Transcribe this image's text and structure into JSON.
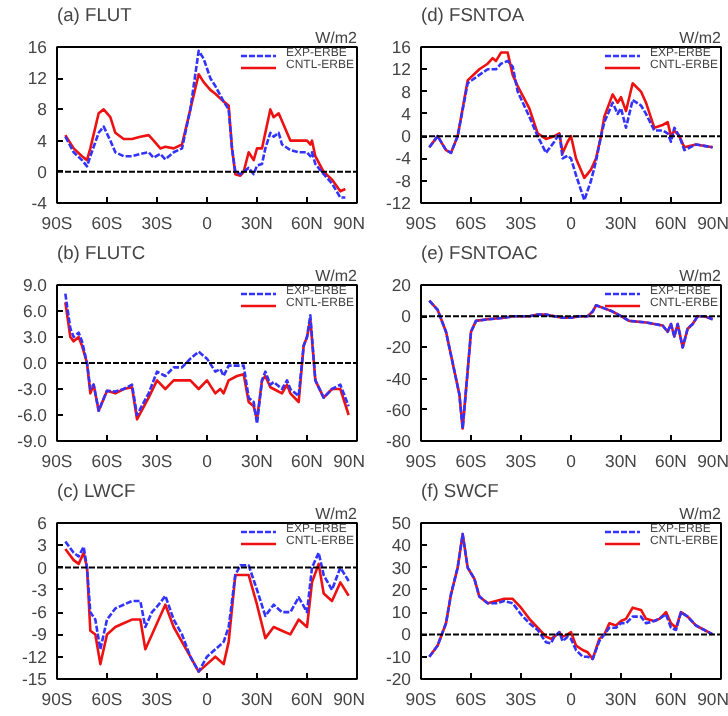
{
  "chart_data": [
    {
      "type": "line",
      "title": "(a) FLUT",
      "annotations": [
        "W/m2"
      ],
      "legend": "top right",
      "grid": false,
      "x": [
        -85,
        -80,
        -75,
        -72,
        -70,
        -65,
        -62,
        -58,
        -55,
        -50,
        -45,
        -40,
        -35,
        -32,
        -28,
        -25,
        -20,
        -15,
        -10,
        -5,
        -2,
        2,
        5,
        10,
        13,
        15,
        17,
        20,
        22,
        25,
        28,
        30,
        33,
        35,
        38,
        40,
        43,
        45,
        50,
        55,
        60,
        62,
        63,
        65,
        70,
        75,
        80,
        83
      ],
      "series": [
        {
          "name": "EXP-ERBE",
          "color": "#3333ff",
          "line_style": "dashed",
          "values": [
            4.5,
            2.5,
            1.5,
            0.7,
            2,
            5,
            5.8,
            4,
            2.5,
            2,
            2,
            2.3,
            2.5,
            1.8,
            2.3,
            1.6,
            2.5,
            3,
            8,
            15.5,
            14.5,
            12,
            11,
            9,
            8,
            3,
            0,
            -0.3,
            0,
            0.5,
            -0.3,
            0.8,
            1,
            3,
            5,
            4.5,
            5,
            3.5,
            2.8,
            2.5,
            2.5,
            2,
            2.5,
            1,
            -0.3,
            -1.5,
            -3.3,
            -3.3
          ]
        },
        {
          "name": "CNTL-ERBE",
          "color": "#ee1111",
          "line_style": "solid",
          "values": [
            4.7,
            3,
            2,
            1.5,
            3,
            7.5,
            8,
            7,
            5,
            4.2,
            4.2,
            4.5,
            4.7,
            4,
            3,
            3.2,
            3,
            3.5,
            8,
            12.5,
            11.5,
            10.5,
            10,
            9,
            8.5,
            3,
            -0.3,
            -0.5,
            0,
            2.5,
            1.5,
            3,
            3,
            5,
            8,
            7,
            7.5,
            6.5,
            4,
            4,
            4,
            3.5,
            4,
            2,
            0,
            -1,
            -2.5,
            -2.2
          ]
        }
      ],
      "xlim": [
        -90,
        90
      ],
      "xticks": [
        {
          "value": -90,
          "label": "90S"
        },
        {
          "value": -60,
          "label": "60S"
        },
        {
          "value": -30,
          "label": "30S"
        },
        0,
        {
          "value": 30,
          "label": "30N"
        },
        {
          "value": 60,
          "label": "60N"
        },
        {
          "value": 90,
          "label": "90N"
        }
      ],
      "ylim": [
        -4,
        16
      ],
      "yticks": [
        -4,
        0,
        4,
        8,
        12,
        16
      ],
      "ref_lines": [
        {
          "axis": "y",
          "value": 0,
          "color": "#000000",
          "line_style": "dashed"
        }
      ]
    },
    {
      "type": "line",
      "title": "(b) FLUTC",
      "annotations": [
        "W/m2"
      ],
      "legend": "top right",
      "grid": false,
      "x": [
        -85,
        -82,
        -80,
        -77,
        -75,
        -72,
        -70,
        -68,
        -65,
        -60,
        -55,
        -50,
        -45,
        -42,
        -35,
        -30,
        -25,
        -20,
        -15,
        -10,
        -5,
        0,
        5,
        8,
        10,
        13,
        18,
        22,
        25,
        28,
        30,
        33,
        35,
        38,
        40,
        45,
        48,
        50,
        55,
        58,
        60,
        62,
        65,
        70,
        75,
        80,
        85
      ],
      "series": [
        {
          "name": "EXP-ERBE",
          "color": "#3333ff",
          "line_style": "dashed",
          "values": [
            8,
            4,
            3,
            3.5,
            2.5,
            0,
            -3,
            -2.5,
            -5.5,
            -3.2,
            -3.3,
            -3,
            -2.5,
            -6,
            -3.5,
            -1,
            -1.5,
            -0.5,
            -0.5,
            0.5,
            1.3,
            0.5,
            -1,
            -0.7,
            -1.5,
            -0.3,
            -0.3,
            -0.3,
            -4,
            -4.5,
            -7,
            -2,
            -1,
            -2.5,
            -2.2,
            -3,
            -2,
            -3,
            -3.8,
            2,
            3,
            5.5,
            -2,
            -4,
            -3,
            -2.5,
            -5
          ]
        },
        {
          "name": "CNTL-ERBE",
          "color": "#ee1111",
          "line_style": "solid",
          "values": [
            7,
            3,
            2.5,
            3,
            2,
            0,
            -3.5,
            -2.5,
            -5.5,
            -3.2,
            -3.5,
            -3,
            -2.8,
            -6.5,
            -4,
            -2,
            -3,
            -2,
            -2,
            -2,
            -3,
            -2,
            -3.5,
            -3,
            -3.5,
            -2,
            -1.5,
            -1.3,
            -4.5,
            -5,
            -6.5,
            -2,
            -1.5,
            -2.8,
            -3,
            -3.5,
            -2.5,
            -3.5,
            -4.5,
            2,
            3,
            5,
            -2,
            -4,
            -3,
            -3,
            -6
          ]
        }
      ],
      "xlim": [
        -90,
        90
      ],
      "xticks": [
        {
          "value": -90,
          "label": "90S"
        },
        {
          "value": -60,
          "label": "60S"
        },
        {
          "value": -30,
          "label": "30S"
        },
        0,
        {
          "value": 30,
          "label": "30N"
        },
        {
          "value": 60,
          "label": "60N"
        },
        {
          "value": 90,
          "label": "90N"
        }
      ],
      "ylim": [
        -9,
        9
      ],
      "yticks": [
        {
          "value": -9,
          "label": "-9.0"
        },
        {
          "value": -6,
          "label": "-6.0"
        },
        {
          "value": -3,
          "label": "-3.0"
        },
        {
          "value": 0,
          "label": "0.0"
        },
        {
          "value": 3,
          "label": "3.0"
        },
        {
          "value": 6,
          "label": "6.0"
        },
        {
          "value": 9,
          "label": "9.0"
        }
      ],
      "ref_lines": [
        {
          "axis": "y",
          "value": 0,
          "color": "#000000",
          "line_style": "dashed"
        }
      ]
    },
    {
      "type": "line",
      "title": "(c) LWCF",
      "annotations": [
        "W/m2"
      ],
      "legend": "top right",
      "grid": false,
      "x": [
        -85,
        -80,
        -77,
        -74,
        -72,
        -70,
        -67,
        -64,
        -60,
        -55,
        -50,
        -45,
        -40,
        -37,
        -33,
        -29,
        -25,
        -20,
        -15,
        -10,
        -5,
        0,
        5,
        10,
        13,
        17,
        20,
        25,
        30,
        35,
        40,
        45,
        50,
        55,
        60,
        63,
        67,
        70,
        75,
        80,
        85
      ],
      "series": [
        {
          "name": "EXP-ERBE",
          "color": "#3333ff",
          "line_style": "dashed",
          "values": [
            3.5,
            2,
            1.5,
            2.8,
            0,
            -6,
            -7,
            -11,
            -7,
            -5.5,
            -5,
            -4.5,
            -4.5,
            -8,
            -6,
            -5,
            -3.8,
            -7,
            -9,
            -12,
            -14,
            -12,
            -11,
            -10,
            -8,
            -1,
            0.3,
            0.3,
            -3,
            -6.5,
            -5,
            -6,
            -6,
            -4,
            -6,
            0,
            2,
            -1,
            -3,
            0,
            -1.8
          ]
        },
        {
          "name": "CNTL-ERBE",
          "color": "#ee1111",
          "line_style": "solid",
          "values": [
            2.5,
            1,
            0.5,
            2,
            0,
            -8.5,
            -9,
            -13,
            -9,
            -8,
            -7.5,
            -7,
            -7,
            -11,
            -9,
            -7,
            -5,
            -8,
            -10,
            -12,
            -14,
            -13,
            -12,
            -13,
            -10,
            -1,
            -1,
            -1,
            -5,
            -9.5,
            -8,
            -8.5,
            -9,
            -7,
            -8,
            -2,
            0.5,
            -3.5,
            -4.5,
            -2,
            -3.8
          ]
        }
      ],
      "xlim": [
        -90,
        90
      ],
      "xticks": [
        {
          "value": -90,
          "label": "90S"
        },
        {
          "value": -60,
          "label": "60S"
        },
        {
          "value": -30,
          "label": "30S"
        },
        0,
        {
          "value": 30,
          "label": "30N"
        },
        {
          "value": 60,
          "label": "60N"
        },
        {
          "value": 90,
          "label": "90N"
        }
      ],
      "ylim": [
        -15,
        6
      ],
      "yticks": [
        -15,
        -12,
        -9,
        -6,
        -3,
        0,
        3,
        6
      ],
      "ref_lines": [
        {
          "axis": "y",
          "value": 0,
          "color": "#000000",
          "line_style": "dashed"
        }
      ]
    },
    {
      "type": "line",
      "title": "(d) FSNTOA",
      "annotations": [
        "W/m2"
      ],
      "legend": "top right",
      "grid": false,
      "x": [
        -85,
        -80,
        -75,
        -72,
        -68,
        -62,
        -55,
        -50,
        -47,
        -45,
        -42,
        -38,
        -35,
        -32,
        -25,
        -20,
        -15,
        -10,
        -7,
        -5,
        -2,
        0,
        3,
        8,
        12,
        15,
        18,
        20,
        25,
        28,
        30,
        33,
        37,
        42,
        45,
        50,
        55,
        58,
        60,
        62,
        65,
        68,
        75,
        85
      ],
      "series": [
        {
          "name": "EXP-ERBE",
          "color": "#3333ff",
          "line_style": "dashed",
          "values": [
            -2,
            0,
            -2.5,
            -3,
            0,
            9.5,
            11,
            12,
            12,
            12,
            13,
            13.5,
            12.5,
            8,
            3.5,
            0,
            -3,
            -1,
            0.5,
            -4,
            -3.5,
            -4,
            -7,
            -11.5,
            -8,
            -4.5,
            0,
            2.5,
            6,
            4,
            5,
            1.5,
            6.5,
            5.5,
            4,
            1,
            1,
            0.5,
            -1,
            1.5,
            0,
            -2.5,
            -1.5,
            -2
          ]
        },
        {
          "name": "CNTL-ERBE",
          "color": "#ee1111",
          "line_style": "solid",
          "values": [
            -2,
            0,
            -2.5,
            -3,
            0,
            10,
            12,
            13,
            14,
            13.5,
            15,
            15,
            11,
            9,
            5,
            0.5,
            -0.5,
            0,
            0.5,
            -3,
            -1,
            0,
            -4,
            -7.5,
            -6,
            -4,
            0,
            3.5,
            7.5,
            6,
            7,
            4.5,
            9.5,
            8,
            6,
            1.5,
            2,
            2.5,
            0,
            1,
            0,
            -2,
            -1.5,
            -2
          ]
        }
      ],
      "xlim": [
        -90,
        90
      ],
      "xticks": [
        {
          "value": -90,
          "label": "90S"
        },
        {
          "value": -60,
          "label": "60S"
        },
        {
          "value": -30,
          "label": "30S"
        },
        0,
        {
          "value": 30,
          "label": "30N"
        },
        {
          "value": 60,
          "label": "60N"
        },
        {
          "value": 90,
          "label": "90N"
        }
      ],
      "ylim": [
        -12,
        16
      ],
      "yticks": [
        -12,
        -8,
        -4,
        0,
        4,
        8,
        12,
        16
      ],
      "ref_lines": [
        {
          "axis": "y",
          "value": 0,
          "color": "#000000",
          "line_style": "dashed"
        }
      ]
    },
    {
      "type": "line",
      "title": "(e) FSNTOAC",
      "annotations": [
        "W/m2"
      ],
      "legend": "top right",
      "grid": false,
      "x": [
        -85,
        -80,
        -75,
        -70,
        -67,
        -65,
        -62,
        -60,
        -57,
        -50,
        -40,
        -35,
        -25,
        -20,
        -15,
        -10,
        -5,
        0,
        5,
        10,
        13,
        15,
        20,
        25,
        30,
        35,
        45,
        55,
        58,
        60,
        62,
        64,
        67,
        70,
        73,
        76,
        80,
        85
      ],
      "series": [
        {
          "name": "CNTL-ERBE",
          "color": "#ee1111",
          "line_style": "solid",
          "values": [
            10,
            4,
            -10,
            -35,
            -50,
            -72,
            -35,
            -10,
            -3,
            -2,
            -1,
            0,
            0,
            1,
            1,
            0,
            -1,
            -1,
            0,
            0,
            3,
            7,
            5,
            3,
            0,
            -3,
            -4,
            -6,
            -10,
            -5,
            -13,
            -5,
            -20,
            -8,
            -5,
            0,
            0,
            -2
          ]
        },
        {
          "name": "EXP-ERBE",
          "color": "#3333ff",
          "line_style": "dashed",
          "values": [
            10,
            4,
            -10,
            -35,
            -50,
            -72,
            -35,
            -10,
            -3,
            -2,
            -1,
            0,
            0,
            1,
            1,
            0,
            -1,
            -1,
            0,
            0,
            3,
            7,
            5,
            3,
            0,
            -3,
            -4,
            -6,
            -10,
            -5,
            -13,
            -5,
            -20,
            -8,
            -5,
            0,
            0,
            -2
          ]
        }
      ],
      "xlim": [
        -90,
        90
      ],
      "xticks": [
        {
          "value": -90,
          "label": "90S"
        },
        {
          "value": -60,
          "label": "60S"
        },
        {
          "value": -30,
          "label": "30S"
        },
        0,
        {
          "value": 30,
          "label": "30N"
        },
        {
          "value": 60,
          "label": "60N"
        },
        {
          "value": 90,
          "label": "90N"
        }
      ],
      "ylim": [
        -80,
        20
      ],
      "yticks": [
        -80,
        -60,
        -40,
        -20,
        0,
        20
      ],
      "ref_lines": [
        {
          "axis": "y",
          "value": 0,
          "color": "#000000",
          "line_style": "dashed"
        }
      ]
    },
    {
      "type": "line",
      "title": "(f) SWCF",
      "annotations": [
        "W/m2"
      ],
      "legend": "top right",
      "grid": false,
      "x": [
        -85,
        -80,
        -75,
        -72,
        -68,
        -65,
        -62,
        -58,
        -55,
        -50,
        -45,
        -40,
        -35,
        -30,
        -25,
        -20,
        -15,
        -12,
        -10,
        -7,
        -5,
        -2,
        0,
        3,
        7,
        10,
        13,
        17,
        20,
        23,
        27,
        30,
        33,
        37,
        42,
        45,
        50,
        53,
        57,
        60,
        63,
        66,
        70,
        75,
        85
      ],
      "series": [
        {
          "name": "EXP-ERBE",
          "color": "#3333ff",
          "line_style": "dashed",
          "values": [
            -10,
            -5,
            5,
            18,
            30,
            45,
            30,
            25,
            17,
            14,
            14,
            15,
            14,
            9,
            5,
            2,
            -3.5,
            -4,
            -1,
            1,
            -3,
            -1,
            -2,
            -7,
            -10,
            -10,
            -11,
            -3,
            0,
            3,
            3,
            5,
            5,
            8,
            8,
            5,
            6,
            7,
            9,
            3,
            2,
            10,
            8,
            4,
            0
          ]
        },
        {
          "name": "CNTL-ERBE",
          "color": "#ee1111",
          "line_style": "solid",
          "values": [
            -10,
            -5,
            5,
            18,
            30,
            45,
            30,
            25,
            17,
            14,
            15,
            16,
            16,
            12,
            7,
            3,
            -1,
            -2,
            -1,
            1,
            -1,
            0,
            1,
            -5,
            -7,
            -8,
            -11,
            -2,
            0,
            5,
            4,
            6,
            7,
            12,
            11,
            7,
            6,
            7,
            10,
            5,
            3,
            10,
            8,
            4,
            0
          ]
        }
      ],
      "xlim": [
        -90,
        90
      ],
      "xticks": [
        {
          "value": -90,
          "label": "90S"
        },
        {
          "value": -60,
          "label": "60S"
        },
        {
          "value": -30,
          "label": "30S"
        },
        0,
        {
          "value": 30,
          "label": "30N"
        },
        {
          "value": 60,
          "label": "60N"
        },
        {
          "value": 90,
          "label": "90N"
        }
      ],
      "ylim": [
        -20,
        50
      ],
      "yticks": [
        -20,
        -10,
        0,
        10,
        20,
        30,
        40,
        50
      ],
      "ref_lines": [
        {
          "axis": "y",
          "value": 0,
          "color": "#000000",
          "line_style": "dashed"
        }
      ]
    }
  ]
}
